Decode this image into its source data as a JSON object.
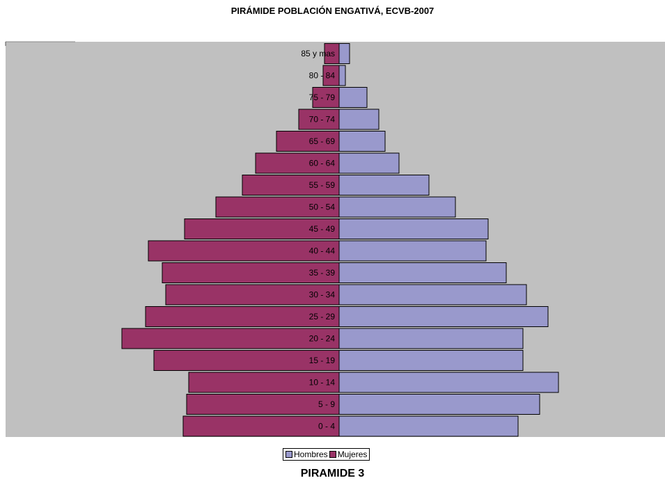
{
  "chart_data": {
    "type": "bar",
    "title": "PIRÁMIDE POBLACIÓN ENGATIVÁ, ECVB-2007",
    "caption": "PIRAMIDE 3",
    "categories": [
      "0 - 4",
      "5 - 9",
      "10 - 14",
      "15 - 19",
      "20 - 24",
      "25 - 29",
      "30 - 34",
      "35 - 39",
      "40 - 44",
      "45 - 49",
      "50 - 54",
      "55 - 59",
      "60 - 64",
      "65 - 69",
      "70 - 74",
      "75 - 79",
      "80 - 84",
      "85 y mas"
    ],
    "series": [
      {
        "name": "Hombres",
        "color": "#9999cc",
        "values": [
          257,
          288,
          315,
          264,
          264,
          300,
          269,
          240,
          211,
          214,
          167,
          129,
          86,
          66,
          57,
          40,
          9,
          15
        ]
      },
      {
        "name": "Mujeres",
        "color": "#993366",
        "values": [
          224,
          219,
          216,
          266,
          312,
          278,
          249,
          254,
          274,
          222,
          177,
          139,
          120,
          90,
          58,
          38,
          23,
          21
        ]
      }
    ],
    "legend_position": "bottom",
    "grid": false,
    "plot_background": "#c0c0c0"
  }
}
